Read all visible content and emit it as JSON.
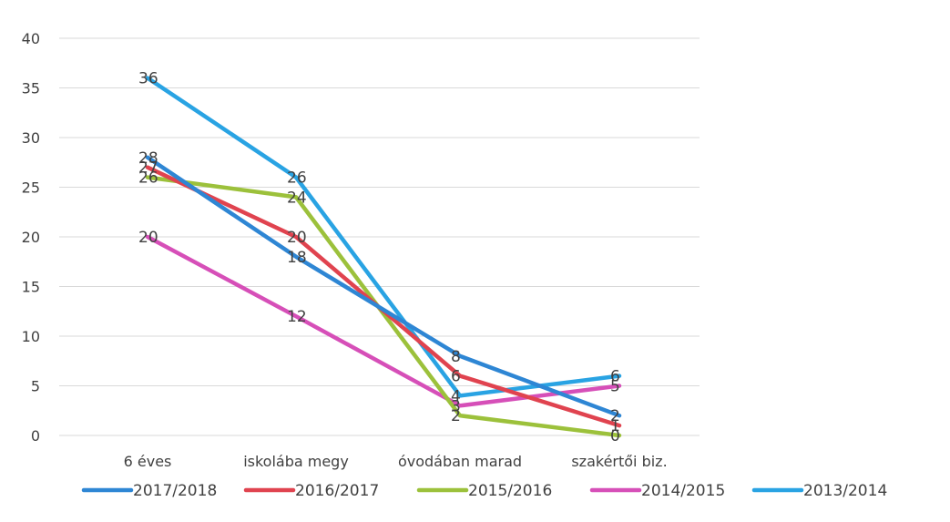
{
  "chart_data": {
    "type": "line",
    "categories": [
      "6 éves",
      "iskolába megy",
      "óvodában marad",
      "szakértői biz."
    ],
    "ylim": [
      0,
      40
    ],
    "yticks": [
      0,
      5,
      10,
      15,
      20,
      25,
      30,
      35,
      40
    ],
    "grid": true,
    "legend_position": "bottom",
    "series": [
      {
        "name": "2017/2018",
        "values": [
          28,
          18,
          8,
          2
        ],
        "color": "#2e86d4"
      },
      {
        "name": "2016/2017",
        "values": [
          27,
          20,
          6,
          1
        ],
        "color": "#e0434f"
      },
      {
        "name": "2015/2016",
        "values": [
          26,
          24,
          2,
          0
        ],
        "color": "#9cc13b"
      },
      {
        "name": "2014/2015",
        "values": [
          20,
          12,
          3,
          5
        ],
        "color": "#d64fb8"
      },
      {
        "name": "2013/2014",
        "values": [
          36,
          26,
          4,
          6
        ],
        "color": "#29a3e3"
      }
    ]
  }
}
